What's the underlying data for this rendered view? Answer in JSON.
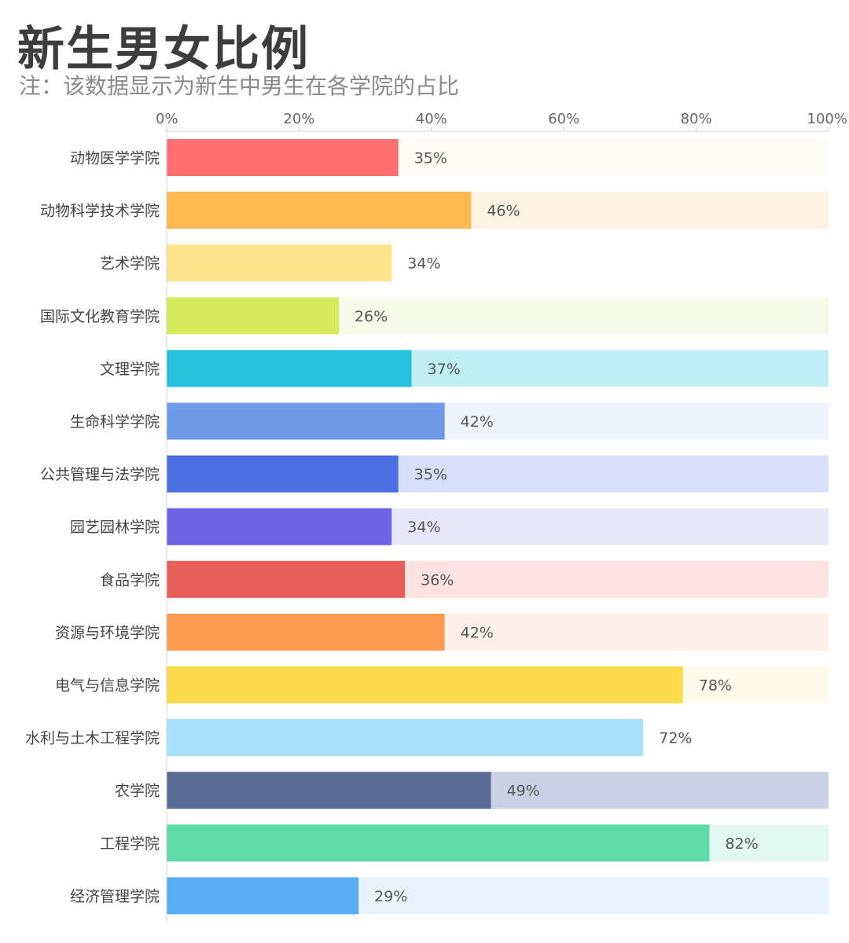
{
  "chart_data": {
    "type": "bar",
    "orientation": "horizontal",
    "title": "新生男女比例",
    "subtitle": "注：该数据显示为新生中男生在各学院的占比",
    "xlim": [
      0,
      100
    ],
    "xticks": [
      "0%",
      "20%",
      "40%",
      "60%",
      "80%",
      "100%"
    ],
    "categories": [
      "动物医学学院",
      "动物科学技术学院",
      "艺术学院",
      "国际文化教育学院",
      "文理学院",
      "生命科学学院",
      "公共管理与法学院",
      "园艺园林学院",
      "食品学院",
      "资源与环境学院",
      "电气与信息学院",
      "水利与土木工程学院",
      "农学院",
      "工程学院",
      "经济管理学院"
    ],
    "values": [
      35,
      46,
      34,
      26,
      37,
      42,
      35,
      34,
      36,
      42,
      78,
      72,
      49,
      82,
      29
    ],
    "value_labels": [
      "35%",
      "46%",
      "34%",
      "26%",
      "37%",
      "42%",
      "35%",
      "34%",
      "36%",
      "42%",
      "78%",
      "72%",
      "49%",
      "82%",
      "29%"
    ],
    "colors": [
      "#ff6f6f",
      "#fdb84f",
      "#ffe48c",
      "#d5eb5c",
      "#26c2dc",
      "#6d99e6",
      "#4b6fe0",
      "#6f62e3",
      "#e65e57",
      "#fd9a52",
      "#fedb4b",
      "#a8e0f9",
      "#5b6c94",
      "#5fdaa9",
      "#59adf2"
    ],
    "track_colors": [
      "#fffcf8",
      "#fff4e3",
      "#ffffff",
      "#f6fbe8",
      "#bfeef4",
      "#eff3fd",
      "#d8dff8",
      "#e8e7f9",
      "#fde2e2",
      "#fef0e8",
      "#fffbea",
      "#ffffff",
      "#cbd1e4",
      "#e1f8f0",
      "#e9f3fd"
    ],
    "grid": false,
    "legend": "none"
  }
}
